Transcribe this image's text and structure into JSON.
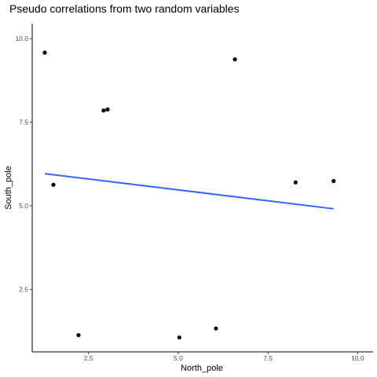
{
  "chart_data": {
    "type": "scatter",
    "title": "Pseudo correlations from two random variables",
    "xlabel": "North_pole",
    "ylabel": "South_pole",
    "xlim": [
      0.93,
      10.43
    ],
    "ylim": [
      0.63,
      10.45
    ],
    "x_ticks": [
      2.5,
      5.0,
      7.5,
      10.0
    ],
    "x_tick_labels": [
      "2.5",
      "5.0",
      "7.5",
      "10.0"
    ],
    "y_ticks": [
      2.5,
      5.0,
      7.5,
      10.0
    ],
    "y_tick_labels": [
      "2.5",
      "5.0",
      "7.5",
      "10.0"
    ],
    "grid": false,
    "points": {
      "x": [
        1.28,
        1.52,
        2.22,
        2.92,
        3.03,
        5.03,
        6.05,
        6.58,
        8.27,
        9.33
      ],
      "y": [
        9.58,
        5.63,
        1.13,
        7.85,
        7.88,
        1.06,
        1.33,
        9.38,
        5.7,
        5.74
      ]
    },
    "regression_line": {
      "x": [
        1.28,
        9.33
      ],
      "y": [
        5.96,
        4.91
      ]
    },
    "colors": {
      "point": "#000000",
      "line": "#3366FF",
      "axis": "#000000",
      "tick_label": "#4d4d4d"
    }
  }
}
